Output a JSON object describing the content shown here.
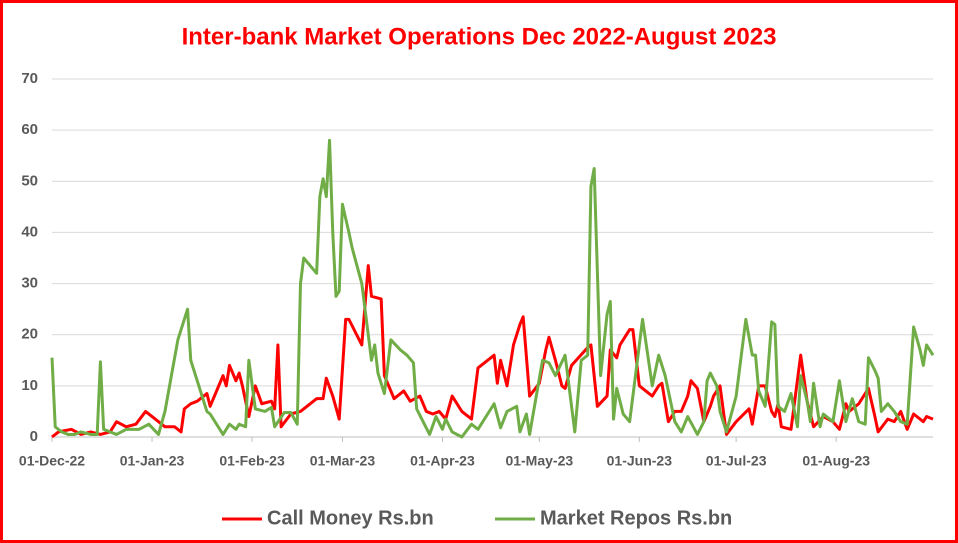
{
  "chart_data": {
    "type": "line",
    "title": "Inter-bank Market Operations Dec 2022-August 2023",
    "xlim": [
      "01-Dec-22",
      "31-Aug-23"
    ],
    "xticks": [
      "01-Dec-22",
      "01-Jan-23",
      "01-Feb-23",
      "01-Mar-23",
      "01-Apr-23",
      "01-May-23",
      "01-Jun-23",
      "01-Jul-23",
      "01-Aug-23"
    ],
    "ylim": [
      0,
      70
    ],
    "yticks": [
      0,
      10,
      20,
      30,
      40,
      50,
      60,
      70
    ],
    "grid": true,
    "legend": "bottom",
    "series": [
      {
        "name": "Call Money Rs.bn",
        "color": "#ff0000",
        "x": [
          "01-Dec-22",
          "03-Dec-22",
          "07-Dec-22",
          "10-Dec-22",
          "13-Dec-22",
          "16-Dec-22",
          "19-Dec-22",
          "21-Dec-22",
          "24-Dec-22",
          "27-Dec-22",
          "30-Dec-22",
          "02-Jan-23",
          "05-Jan-23",
          "08-Jan-23",
          "10-Jan-23",
          "11-Jan-23",
          "13-Jan-23",
          "15-Jan-23",
          "18-Jan-23",
          "19-Jan-23",
          "23-Jan-23",
          "24-Jan-23",
          "25-Jan-23",
          "27-Jan-23",
          "28-Jan-23",
          "29-Jan-23",
          "31-Jan-23",
          "02-Feb-23",
          "04-Feb-23",
          "07-Feb-23",
          "08-Feb-23",
          "09-Feb-23",
          "10-Feb-23",
          "13-Feb-23",
          "16-Feb-23",
          "21-Feb-23",
          "23-Feb-23",
          "24-Feb-23",
          "26-Feb-23",
          "28-Feb-23",
          "02-Mar-23",
          "03-Mar-23",
          "07-Mar-23",
          "09-Mar-23",
          "10-Mar-23",
          "13-Mar-23",
          "14-Mar-23",
          "17-Mar-23",
          "20-Mar-23",
          "22-Mar-23",
          "25-Mar-23",
          "27-Mar-23",
          "29-Mar-23",
          "31-Mar-23",
          "02-Apr-23",
          "04-Apr-23",
          "07-Apr-23",
          "10-Apr-23",
          "12-Apr-23",
          "17-Apr-23",
          "18-Apr-23",
          "19-Apr-23",
          "21-Apr-23",
          "23-Apr-23",
          "25-Apr-23",
          "26-Apr-23",
          "28-Apr-23",
          "01-May-23",
          "03-May-23",
          "04-May-23",
          "06-May-23",
          "08-May-23",
          "09-May-23",
          "11-May-23",
          "16-May-23",
          "17-May-23",
          "19-May-23",
          "22-May-23",
          "23-May-23",
          "25-May-23",
          "26-May-23",
          "29-May-23",
          "30-May-23",
          "01-Jun-23",
          "05-Jun-23",
          "07-Jun-23",
          "08-Jun-23",
          "10-Jun-23",
          "12-Jun-23",
          "14-Jun-23",
          "16-Jun-23",
          "17-Jun-23",
          "19-Jun-23",
          "21-Jun-23",
          "23-Jun-23",
          "24-Jun-23",
          "26-Jun-23",
          "28-Jun-23",
          "01-Jul-23",
          "05-Jul-23",
          "06-Jul-23",
          "08-Jul-23",
          "10-Jul-23",
          "12-Jul-23",
          "13-Jul-23",
          "14-Jul-23",
          "15-Jul-23",
          "18-Jul-23",
          "21-Jul-23",
          "23-Jul-23",
          "25-Jul-23",
          "28-Jul-23",
          "31-Jul-23",
          "02-Aug-23",
          "04-Aug-23",
          "05-Aug-23",
          "08-Aug-23",
          "11-Aug-23",
          "13-Aug-23",
          "14-Aug-23",
          "17-Aug-23",
          "19-Aug-23",
          "21-Aug-23",
          "23-Aug-23",
          "25-Aug-23",
          "28-Aug-23",
          "29-Aug-23",
          "31-Aug-23"
        ],
        "values": [
          0,
          1,
          1.5,
          0.5,
          1,
          0.5,
          1,
          3,
          2,
          2.5,
          5,
          3.5,
          2,
          2,
          1,
          5.5,
          6.5,
          7,
          8.5,
          6,
          12,
          10,
          14,
          11,
          12.5,
          10,
          4,
          10,
          6.5,
          7,
          5.5,
          18,
          2,
          4.5,
          5,
          7.5,
          7.5,
          11.5,
          8,
          3.5,
          23,
          23,
          18,
          33.5,
          27.5,
          27,
          12,
          7.5,
          9,
          7,
          8,
          5,
          4.5,
          5,
          3.5,
          8,
          5,
          3.5,
          13.5,
          16,
          10.5,
          15,
          10,
          18,
          22,
          23.5,
          8,
          10.5,
          17,
          19.5,
          15,
          10,
          9.5,
          14,
          17.5,
          18,
          6,
          8,
          17,
          15.5,
          18,
          21,
          21,
          10,
          8,
          10,
          10.5,
          3,
          5,
          5,
          8,
          11,
          9.5,
          3,
          6,
          8,
          10,
          0.5,
          3,
          5.5,
          2.5,
          10,
          10,
          5,
          4,
          6.5,
          2,
          1.5,
          16,
          7,
          2,
          4,
          3,
          1.5,
          6.5,
          5,
          6.5,
          9.5,
          4,
          1,
          3.5,
          3,
          5,
          1.5,
          4.5,
          3,
          4,
          3.5
        ]
      },
      {
        "name": "Market Repos Rs.bn",
        "color": "#70ad47",
        "x": [
          "01-Dec-22",
          "02-Dec-22",
          "04-Dec-22",
          "06-Dec-22",
          "08-Dec-22",
          "10-Dec-22",
          "13-Dec-22",
          "15-Dec-22",
          "16-Dec-22",
          "17-Dec-22",
          "19-Dec-22",
          "21-Dec-22",
          "24-Dec-22",
          "28-Dec-22",
          "31-Dec-22",
          "03-Jan-23",
          "05-Jan-23",
          "09-Jan-23",
          "12-Jan-23",
          "13-Jan-23",
          "18-Jan-23",
          "19-Jan-23",
          "23-Jan-23",
          "25-Jan-23",
          "27-Jan-23",
          "28-Jan-23",
          "30-Jan-23",
          "31-Jan-23",
          "02-Feb-23",
          "05-Feb-23",
          "07-Feb-23",
          "08-Feb-23",
          "11-Feb-23",
          "13-Feb-23",
          "15-Feb-23",
          "16-Feb-23",
          "17-Feb-23",
          "21-Feb-23",
          "22-Feb-23",
          "23-Feb-23",
          "24-Feb-23",
          "25-Feb-23",
          "26-Feb-23",
          "27-Feb-23",
          "28-Feb-23",
          "01-Mar-23",
          "03-Mar-23",
          "04-Mar-23",
          "07-Mar-23",
          "10-Mar-23",
          "11-Mar-23",
          "12-Mar-23",
          "14-Mar-23",
          "16-Mar-23",
          "19-Mar-23",
          "21-Mar-23",
          "23-Mar-23",
          "24-Mar-23",
          "26-Mar-23",
          "28-Mar-23",
          "30-Mar-23",
          "01-Apr-23",
          "02-Apr-23",
          "04-Apr-23",
          "07-Apr-23",
          "10-Apr-23",
          "12-Apr-23",
          "17-Apr-23",
          "19-Apr-23",
          "21-Apr-23",
          "24-Apr-23",
          "25-Apr-23",
          "27-Apr-23",
          "28-Apr-23",
          "02-May-23",
          "04-May-23",
          "06-May-23",
          "09-May-23",
          "12-May-23",
          "14-May-23",
          "16-May-23",
          "17-May-23",
          "18-May-23",
          "20-May-23",
          "22-May-23",
          "23-May-23",
          "24-May-23",
          "25-May-23",
          "27-May-23",
          "29-May-23",
          "31-May-23",
          "02-Jun-23",
          "05-Jun-23",
          "07-Jun-23",
          "09-Jun-23",
          "12-Jun-23",
          "14-Jun-23",
          "16-Jun-23",
          "19-Jun-23",
          "21-Jun-23",
          "22-Jun-23",
          "23-Jun-23",
          "25-Jun-23",
          "26-Jun-23",
          "28-Jun-23",
          "01-Jul-23",
          "04-Jul-23",
          "06-Jul-23",
          "07-Jul-23",
          "08-Jul-23",
          "10-Jul-23",
          "12-Jul-23",
          "13-Jul-23",
          "14-Jul-23",
          "16-Jul-23",
          "18-Jul-23",
          "20-Jul-23",
          "21-Jul-23",
          "23-Jul-23",
          "24-Jul-23",
          "25-Jul-23",
          "27-Jul-23",
          "28-Jul-23",
          "31-Jul-23",
          "02-Aug-23",
          "04-Aug-23",
          "06-Aug-23",
          "08-Aug-23",
          "10-Aug-23",
          "11-Aug-23",
          "13-Aug-23",
          "14-Aug-23",
          "15-Aug-23",
          "17-Aug-23",
          "19-Aug-23",
          "21-Aug-23",
          "23-Aug-23",
          "25-Aug-23",
          "27-Aug-23",
          "28-Aug-23",
          "29-Aug-23",
          "31-Aug-23"
        ],
        "values": [
          15.5,
          2,
          1,
          0.5,
          0.5,
          1,
          0.5,
          0.5,
          14.7,
          1.5,
          1,
          0.5,
          1.5,
          1.5,
          2.5,
          0.5,
          5,
          19,
          25,
          15,
          5,
          4.5,
          0.5,
          2.5,
          1.5,
          2.5,
          2,
          15,
          5.5,
          5,
          5.8,
          2,
          4.8,
          4.8,
          2.5,
          30,
          35,
          32,
          47,
          50.5,
          47,
          58,
          40,
          27.5,
          28.5,
          45.5,
          40,
          37,
          30,
          15,
          18,
          12.5,
          8.5,
          19,
          17,
          16,
          14.5,
          5.5,
          3,
          0.5,
          4,
          1.5,
          3.5,
          1,
          0,
          2.5,
          1.5,
          6.5,
          1.8,
          5,
          6,
          1,
          4.5,
          0.5,
          15,
          14.5,
          12,
          16,
          1,
          15,
          16,
          49,
          52.5,
          12,
          24,
          26.5,
          3.5,
          9.5,
          4.5,
          3,
          13,
          23,
          10,
          16,
          12,
          3,
          1,
          4,
          0.5,
          3,
          11,
          12.5,
          10,
          5,
          1,
          8,
          23,
          16,
          16,
          9,
          6,
          22.5,
          22,
          6,
          5,
          8.5,
          2,
          12,
          7,
          3,
          10.5,
          2,
          4.5,
          3,
          11,
          3,
          7.5,
          3,
          2.5,
          15.5,
          13,
          11.5,
          5,
          6.5,
          5,
          3,
          2.5,
          21.5,
          17,
          14,
          18,
          16
        ]
      }
    ]
  }
}
